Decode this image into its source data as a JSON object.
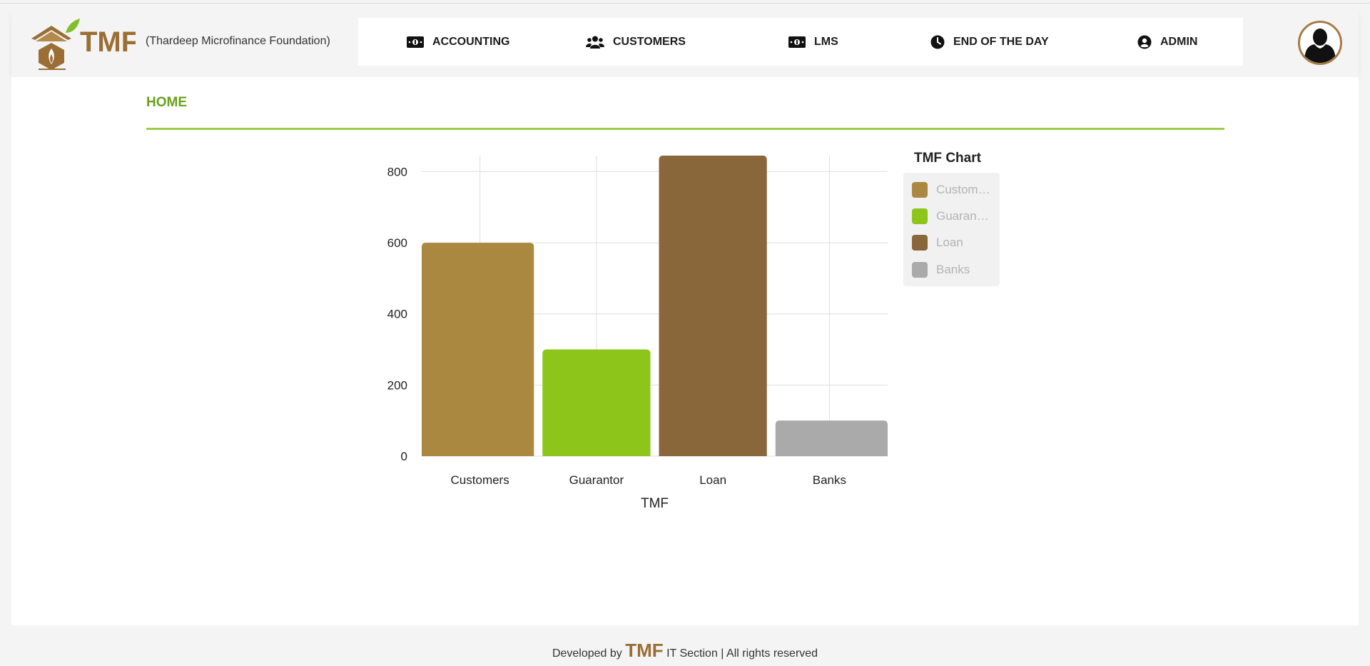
{
  "header": {
    "logo_text": "TMF",
    "org_name": "(Thardeep Microfinance Foundation)",
    "nav": [
      {
        "label": "ACCOUNTING",
        "icon": "money-bill-icon"
      },
      {
        "label": "CUSTOMERS",
        "icon": "users-icon"
      },
      {
        "label": "LMS",
        "icon": "money-bill-icon"
      },
      {
        "label": "END OF THE DAY",
        "icon": "clock-icon"
      },
      {
        "label": "ADMIN",
        "icon": "user-circle-icon"
      }
    ]
  },
  "breadcrumb": "HOME",
  "chart_data": {
    "type": "bar",
    "title": "TMF Chart",
    "xlabel": "TMF",
    "ylabel": "",
    "categories": [
      "Customers",
      "Guarantor",
      "Loan",
      "Banks"
    ],
    "values": [
      600,
      300,
      845,
      100
    ],
    "colors": [
      "#ab883f",
      "#8dc51b",
      "#8a673a",
      "#aaaaaa"
    ],
    "ylim": [
      0,
      845
    ],
    "yticks": [
      0,
      200,
      400,
      600,
      800
    ],
    "grid": true,
    "legend": {
      "placement": "right",
      "entries": [
        "Custom…",
        "Guaran…",
        "Loan",
        "Banks"
      ]
    }
  },
  "footer": {
    "prefix": "Developed by",
    "brand": "TMF",
    "suffix": "IT Section | All rights reserved"
  }
}
